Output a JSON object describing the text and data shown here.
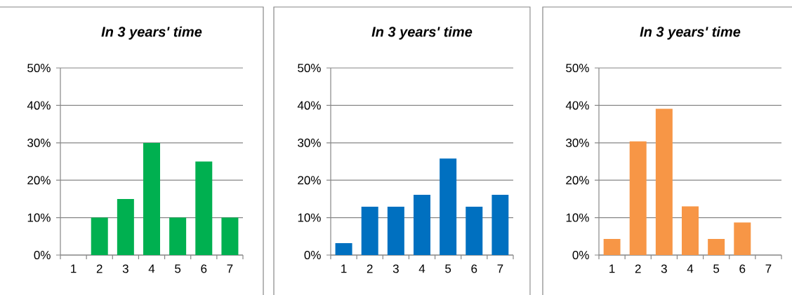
{
  "chart_data": [
    {
      "type": "bar",
      "title": "*In 3 years' time*",
      "categories": [
        "1",
        "2",
        "3",
        "4",
        "5",
        "6",
        "7"
      ],
      "values": [
        0,
        10,
        15,
        30,
        10,
        25,
        10
      ],
      "color": "#00b050",
      "ylim": [
        0,
        50
      ],
      "yticks": [
        {
          "value": 0,
          "label": "0%"
        },
        {
          "value": 10,
          "label": "10%"
        },
        {
          "value": 20,
          "label": "20%"
        },
        {
          "value": 30,
          "label": "30%"
        },
        {
          "value": 40,
          "label": "40%"
        },
        {
          "value": 50,
          "label": "50%"
        }
      ],
      "grid": "y"
    },
    {
      "type": "bar",
      "title": "*In 3 years' time*",
      "categories": [
        "1",
        "2",
        "3",
        "4",
        "5",
        "6",
        "7"
      ],
      "values": [
        3.2,
        12.9,
        12.9,
        16.1,
        25.8,
        12.9,
        16.1
      ],
      "color": "#0070c0",
      "ylim": [
        0,
        50
      ],
      "yticks": [
        {
          "value": 0,
          "label": "0%"
        },
        {
          "value": 10,
          "label": "10%"
        },
        {
          "value": 20,
          "label": "20%"
        },
        {
          "value": 30,
          "label": "30%"
        },
        {
          "value": 40,
          "label": "40%"
        },
        {
          "value": 50,
          "label": "50%"
        }
      ],
      "grid": "y"
    },
    {
      "type": "bar",
      "title": "*In 3 years' time*",
      "categories": [
        "1",
        "2",
        "3",
        "4",
        "5",
        "6",
        "7"
      ],
      "values": [
        4.3,
        30.4,
        39.1,
        13.0,
        4.3,
        8.7,
        0
      ],
      "color": "#f79646",
      "ylim": [
        0,
        50
      ],
      "yticks": [
        {
          "value": 0,
          "label": "0%"
        },
        {
          "value": 10,
          "label": "10%"
        },
        {
          "value": 20,
          "label": "20%"
        },
        {
          "value": 30,
          "label": "30%"
        },
        {
          "value": 40,
          "label": "40%"
        },
        {
          "value": 50,
          "label": "50%"
        }
      ],
      "grid": "y"
    }
  ]
}
